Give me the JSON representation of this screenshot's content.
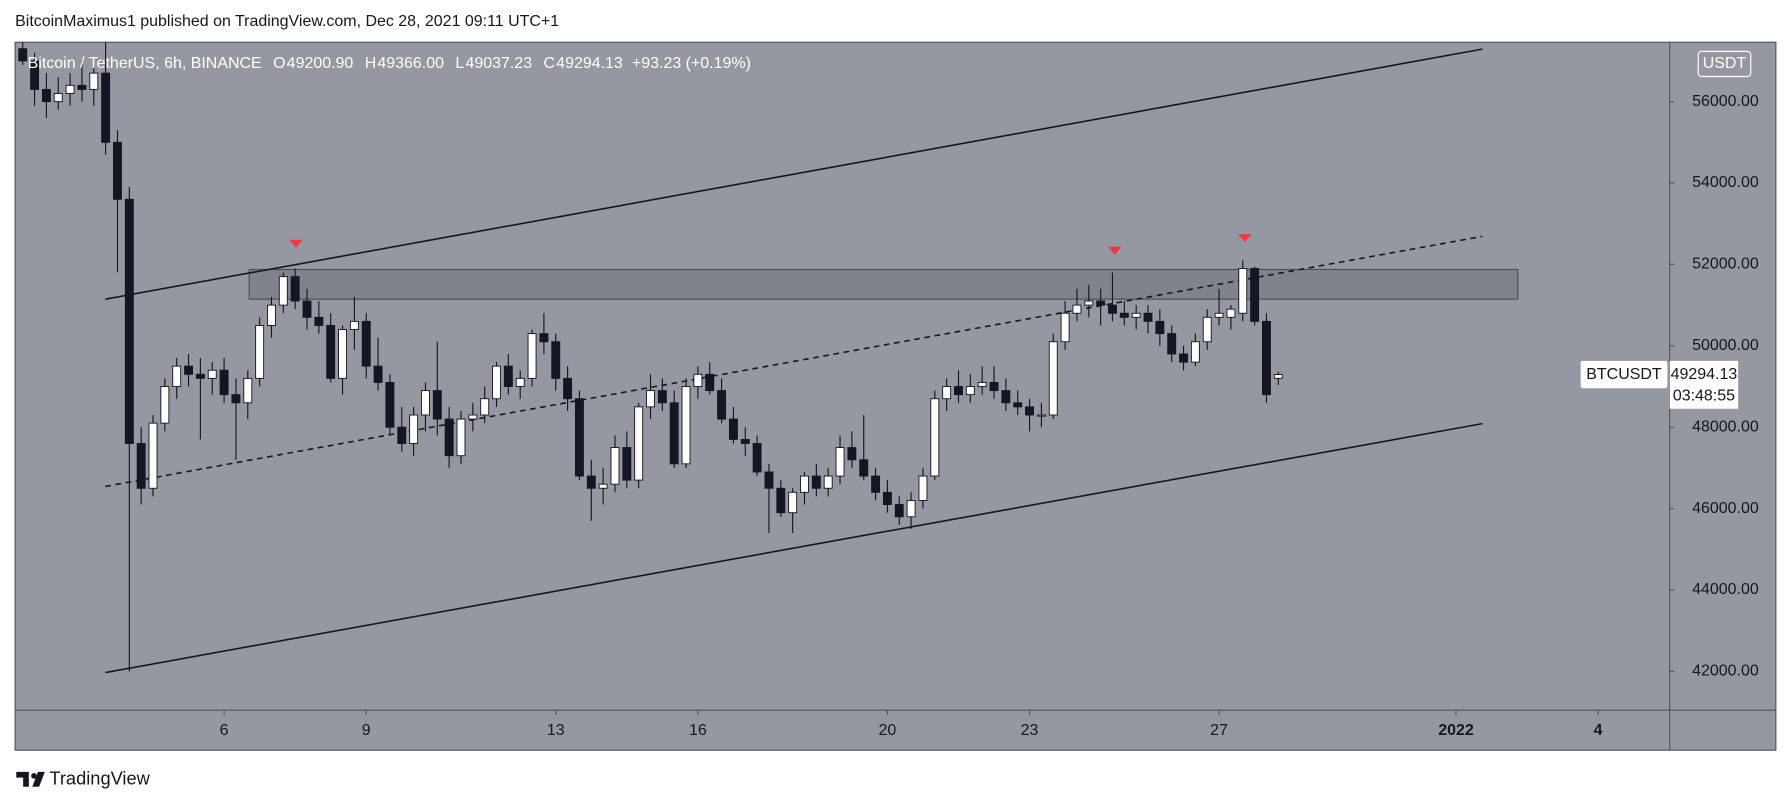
{
  "attribution": "BitcoinMaximus1 published on TradingView.com, Dec 28, 2021 09:11 UTC+1",
  "brand": "TradingView",
  "chart_data": {
    "type": "candlestick",
    "symbol": "Bitcoin / TetherUS, 6h, BINANCE",
    "ohlc_legend": [
      {
        "key": "O",
        "value": 49200.9,
        "label": "49200.90"
      },
      {
        "key": "H",
        "value": 49366,
        "label": "49366.00"
      },
      {
        "key": "L",
        "value": 49037.23,
        "label": "49037.23"
      },
      {
        "key": "C",
        "value": 49294.13,
        "label": "49294.13"
      }
    ],
    "change": "+93.23 (+0.19%)",
    "currency": "USDT",
    "ticker": "BTCUSDT",
    "last_price": {
      "value": 49294.13,
      "label": "49294.13"
    },
    "countdown": "03:48:55",
    "x": [
      1.75,
      2,
      2.25,
      2.5,
      2.75,
      3,
      3.25,
      3.5,
      3.75,
      4,
      4.25,
      4.5,
      4.75,
      5,
      5.25,
      5.5,
      5.75,
      6,
      6.25,
      6.5,
      6.75,
      7,
      7.25,
      7.5,
      7.75,
      8,
      8.25,
      8.5,
      8.75,
      9,
      9.25,
      9.5,
      9.75,
      10,
      10.25,
      10.5,
      10.75,
      11,
      11.25,
      11.5,
      11.75,
      12,
      12.25,
      12.5,
      12.75,
      13,
      13.25,
      13.5,
      13.75,
      14,
      14.25,
      14.5,
      14.75,
      15,
      15.25,
      15.5,
      15.75,
      16,
      16.25,
      16.5,
      16.75,
      17,
      17.25,
      17.5,
      17.75,
      18,
      18.25,
      18.5,
      18.75,
      19,
      19.25,
      19.5,
      19.75,
      20,
      20.25,
      20.5,
      20.75,
      21,
      21.25,
      21.5,
      21.75,
      22,
      22.25,
      22.5,
      22.75,
      23,
      23.25,
      23.5,
      23.75,
      24,
      24.25,
      24.5,
      24.75,
      25,
      25.25,
      25.5,
      25.75,
      26,
      26.25,
      26.5,
      26.75,
      27,
      27.25,
      27.5,
      27.75,
      28,
      28.25
    ],
    "open": [
      57300,
      57000,
      56300,
      56000,
      56200,
      56400,
      56300,
      56700,
      55000,
      53600,
      47600,
      46500,
      48100,
      49000,
      49500,
      49300,
      49200,
      49400,
      48800,
      48600,
      49200,
      50500,
      51000,
      51700,
      51100,
      50700,
      50500,
      49200,
      50400,
      50600,
      49500,
      49100,
      48000,
      47600,
      48300,
      48900,
      48200,
      47300,
      48200,
      48300,
      48700,
      49500,
      49000,
      49200,
      50300,
      50100,
      49200,
      48700,
      46800,
      46500,
      46600,
      47500,
      46700,
      48500,
      48900,
      48600,
      47100,
      49000,
      49300,
      48900,
      48200,
      47700,
      47600,
      46900,
      46500,
      45900,
      46400,
      46800,
      46500,
      46800,
      47500,
      47200,
      46800,
      46400,
      46100,
      45800,
      46200,
      46800,
      48700,
      49000,
      48800,
      49000,
      49100,
      48900,
      48600,
      48500,
      48300,
      48300,
      50100,
      50800,
      51000,
      51100,
      51000,
      50800,
      50700,
      50800,
      50600,
      50300,
      49800,
      49600,
      50100,
      50700,
      50700,
      50800,
      51900,
      50600,
      49200.9
    ],
    "high": [
      57800,
      57200,
      56700,
      56600,
      56700,
      57000,
      56900,
      57600,
      55300,
      53900,
      48000,
      48300,
      49200,
      49700,
      49800,
      49700,
      49600,
      49700,
      49200,
      49400,
      50700,
      51200,
      51800,
      51900,
      51400,
      51100,
      50800,
      50500,
      51200,
      50800,
      50200,
      49300,
      48500,
      48500,
      49100,
      50100,
      48500,
      48400,
      48600,
      49000,
      49600,
      49800,
      49400,
      50400,
      50800,
      50300,
      49500,
      48900,
      47200,
      47000,
      47800,
      47900,
      48600,
      49300,
      49200,
      48900,
      49200,
      49500,
      49600,
      49200,
      48500,
      48000,
      47800,
      47100,
      46700,
      46500,
      46900,
      47100,
      47000,
      47800,
      47900,
      48300,
      47000,
      46700,
      46300,
      46400,
      47000,
      48900,
      49200,
      49400,
      49300,
      49500,
      49500,
      49200,
      48900,
      48700,
      48600,
      50300,
      51100,
      51400,
      51500,
      51400,
      51800,
      51100,
      51000,
      51000,
      50900,
      50500,
      50000,
      50300,
      50900,
      51400,
      51000,
      52100,
      51950,
      50800,
      49366
    ],
    "low": [
      56900,
      55900,
      55600,
      55800,
      55900,
      56000,
      55900,
      54700,
      51800,
      42000,
      46100,
      46300,
      47900,
      48700,
      49000,
      47700,
      48800,
      48600,
      47200,
      48200,
      49000,
      50200,
      50800,
      50900,
      50400,
      50300,
      49100,
      48800,
      49900,
      49200,
      48900,
      47800,
      47400,
      47300,
      47900,
      47800,
      47000,
      47100,
      47900,
      48100,
      48500,
      48800,
      48700,
      49000,
      49800,
      48900,
      48400,
      46700,
      45700,
      46100,
      46400,
      46500,
      46500,
      48200,
      48400,
      47000,
      47000,
      48700,
      48800,
      48100,
      47600,
      47300,
      46800,
      45400,
      45800,
      45400,
      46100,
      46300,
      46300,
      46600,
      47000,
      46700,
      46200,
      45900,
      45600,
      45500,
      46000,
      46700,
      48400,
      48600,
      48600,
      48800,
      48700,
      48400,
      48300,
      47900,
      48000,
      48200,
      49900,
      50600,
      50700,
      50500,
      50600,
      50500,
      50400,
      50300,
      50000,
      49600,
      49400,
      49500,
      49900,
      50500,
      50400,
      50600,
      50500,
      48600,
      49037.23
    ],
    "close": [
      57000,
      56300,
      56000,
      56200,
      56400,
      56300,
      56700,
      55000,
      53600,
      47600,
      46500,
      48100,
      49000,
      49500,
      49300,
      49200,
      49400,
      48800,
      48600,
      49200,
      50500,
      51000,
      51700,
      51100,
      50700,
      50500,
      49200,
      50400,
      50600,
      49500,
      49100,
      48000,
      47600,
      48300,
      48900,
      48200,
      47300,
      48200,
      48300,
      48700,
      49500,
      49000,
      49200,
      50300,
      50100,
      49200,
      48700,
      46800,
      46500,
      46600,
      47500,
      46700,
      48500,
      48900,
      48600,
      47100,
      49000,
      49300,
      48900,
      48200,
      47700,
      47600,
      46900,
      46500,
      45900,
      46400,
      46800,
      46500,
      46800,
      47500,
      47200,
      46800,
      46400,
      46100,
      45800,
      46200,
      46800,
      48700,
      49000,
      48800,
      49000,
      49100,
      48900,
      48600,
      48500,
      48300,
      48300,
      50100,
      50800,
      51000,
      51100,
      51000,
      50800,
      50700,
      50800,
      50600,
      50300,
      49800,
      49600,
      50100,
      50700,
      50800,
      50900,
      51900,
      50600,
      48800,
      49294.13
    ],
    "xlim": [
      1.59,
      36.51
    ],
    "xticks": [
      6,
      9,
      13,
      16,
      20,
      23,
      27,
      {
        "value": 32,
        "label": "2022"
      },
      {
        "value": 35,
        "label": "4"
      }
    ],
    "ylim": [
      41046,
      57459
    ],
    "yticks": [
      {
        "value": 42000,
        "label": "42000.00"
      },
      {
        "value": 44000,
        "label": "44000.00"
      },
      {
        "value": 46000,
        "label": "46000.00"
      },
      {
        "value": 48000,
        "label": "48000.00"
      },
      {
        "value": 50000,
        "label": "50000.00"
      },
      {
        "value": 52000,
        "label": "52000.00"
      },
      {
        "value": 54000,
        "label": "54000.00"
      },
      {
        "value": 56000,
        "label": "56000.00"
      }
    ],
    "grid": false,
    "up_color": "#ffffff",
    "down_color": "#131722",
    "wick_color": "#131722"
  }
}
